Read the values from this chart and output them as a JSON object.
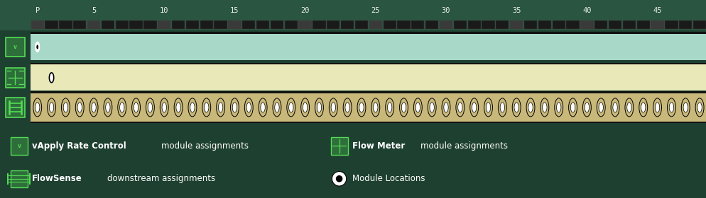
{
  "bg_color": "#1e4030",
  "header_bg": "#2a5540",
  "header_text_color": "#e8f0e8",
  "row_bg": "#111111",
  "row1_color": "#a8d8c8",
  "row2_color": "#e8e8b8",
  "row3_color": "#c8b87a",
  "tick_labels": [
    "P",
    "5",
    "10",
    "15",
    "20",
    "25",
    "30",
    "35",
    "40",
    "45"
  ],
  "tick_positions": [
    0,
    4,
    9,
    14,
    19,
    24,
    29,
    34,
    39,
    44
  ],
  "num_cols": 48,
  "green_dark": "#2d6e3a",
  "green_bright": "#55dd55",
  "green_border": "#55dd55",
  "module_dot_row1_col": 0,
  "module_dot_row2_col": 1
}
